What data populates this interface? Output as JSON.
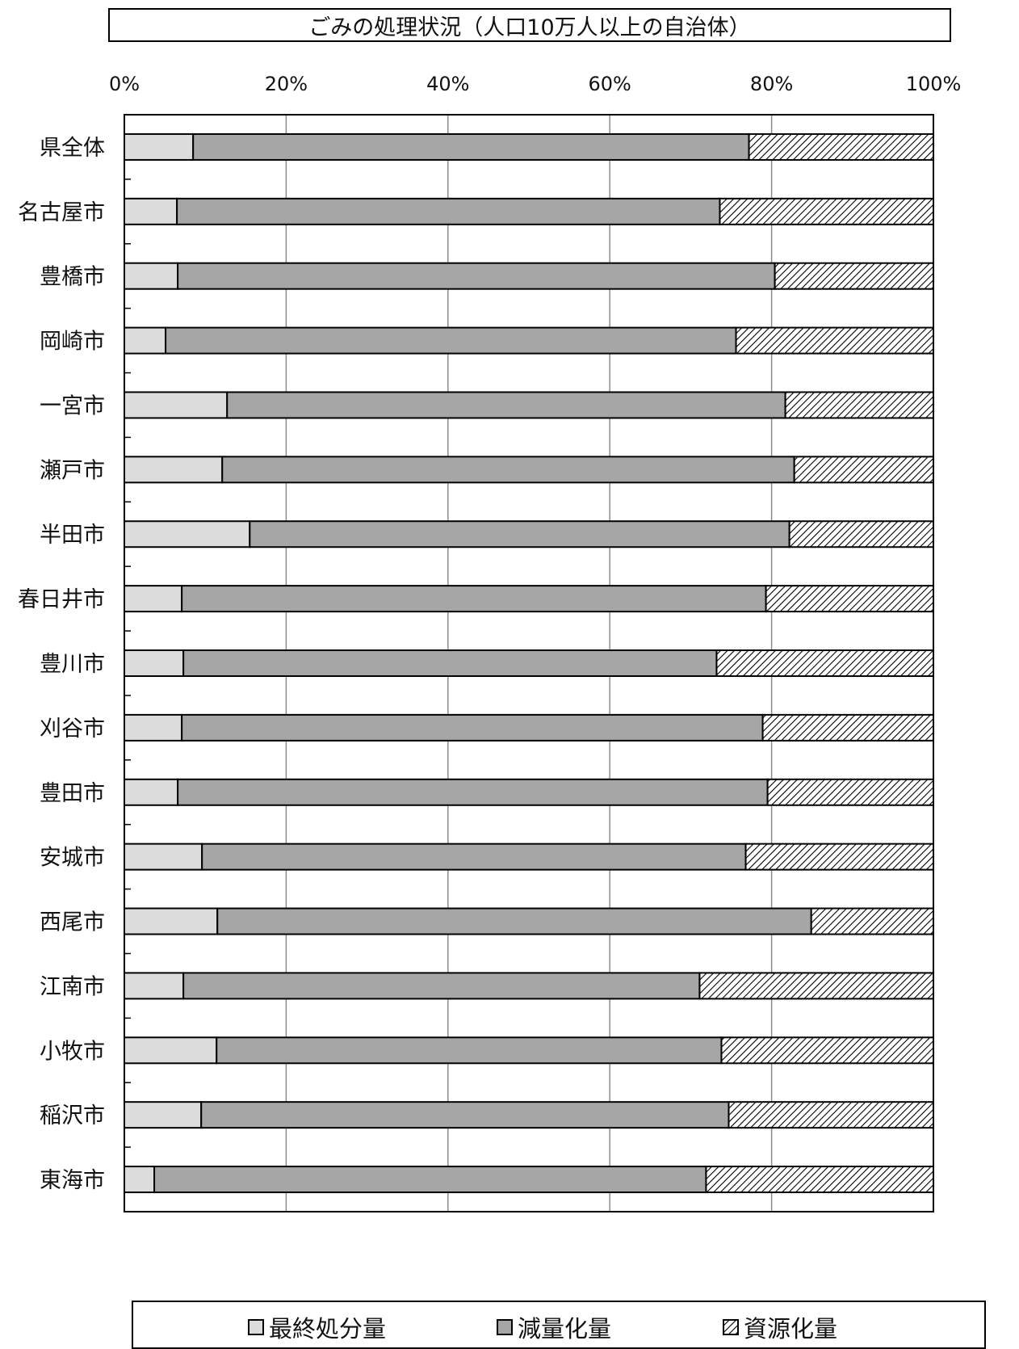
{
  "chart_data": {
    "type": "bar",
    "orientation": "horizontal",
    "stacked": "percent",
    "title": "ごみの処理状況（人口10万人以上の自治体）",
    "categories": [
      "県全体",
      "名古屋市",
      "豊橋市",
      "岡崎市",
      "一宮市",
      "瀬戸市",
      "半田市",
      "春日井市",
      "豊川市",
      "刈谷市",
      "豊田市",
      "安城市",
      "西尾市",
      "江南市",
      "小牧市",
      "稲沢市",
      "東海市"
    ],
    "series": [
      {
        "name": "最終処分量",
        "color": "#dcdcdc",
        "pattern": "solid",
        "values": [
          8.5,
          6.5,
          6.6,
          5.1,
          12.7,
          12.1,
          15.5,
          7.1,
          7.3,
          7.1,
          6.6,
          9.6,
          11.5,
          7.3,
          11.4,
          9.5,
          3.7
        ]
      },
      {
        "name": "減量化量",
        "color": "#a6a6a6",
        "pattern": "solid",
        "values": [
          68.7,
          67.1,
          73.8,
          70.5,
          69.0,
          70.7,
          66.7,
          72.2,
          65.9,
          71.8,
          72.9,
          67.2,
          73.4,
          63.8,
          62.4,
          65.2,
          68.2
        ]
      },
      {
        "name": "資源化量",
        "color": "#ffffff",
        "pattern": "hatch",
        "values": [
          22.8,
          26.4,
          19.6,
          24.4,
          18.3,
          17.2,
          17.8,
          20.7,
          26.8,
          21.1,
          20.5,
          23.2,
          15.1,
          28.9,
          26.2,
          25.3,
          28.1
        ]
      }
    ],
    "xaxis": {
      "ticks": [
        "0%",
        "20%",
        "40%",
        "60%",
        "80%",
        "100%"
      ],
      "range": [
        0,
        100
      ]
    },
    "grid": true,
    "legend": {
      "position": "bottom"
    }
  }
}
